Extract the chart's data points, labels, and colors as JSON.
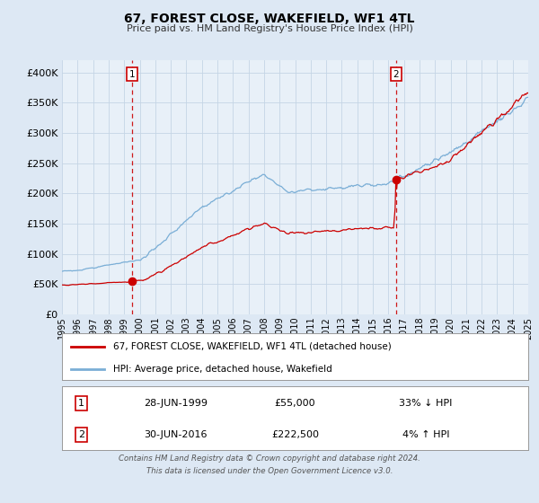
{
  "title": "67, FOREST CLOSE, WAKEFIELD, WF1 4TL",
  "subtitle": "Price paid vs. HM Land Registry's House Price Index (HPI)",
  "bg_color": "#dde8f4",
  "plot_bg_color": "#e8f0f8",
  "grid_color": "#c8d8e8",
  "red_line_color": "#cc0000",
  "blue_line_color": "#7aaed6",
  "marker1_x": 1999.5,
  "marker1_value": 55000,
  "marker2_x": 2016.5,
  "marker2_value": 222500,
  "legend_label_red": "67, FOREST CLOSE, WAKEFIELD, WF1 4TL (detached house)",
  "legend_label_blue": "HPI: Average price, detached house, Wakefield",
  "table_row1": [
    "1",
    "28-JUN-1999",
    "£55,000",
    "33% ↓ HPI"
  ],
  "table_row2": [
    "2",
    "30-JUN-2016",
    "£222,500",
    "4% ↑ HPI"
  ],
  "footer_line1": "Contains HM Land Registry data © Crown copyright and database right 2024.",
  "footer_line2": "This data is licensed under the Open Government Licence v3.0.",
  "ylim": [
    0,
    420000
  ],
  "yticks": [
    0,
    50000,
    100000,
    150000,
    200000,
    250000,
    300000,
    350000,
    400000
  ],
  "xlim": [
    1995,
    2025
  ],
  "xticks": [
    1995,
    1996,
    1997,
    1998,
    1999,
    2000,
    2001,
    2002,
    2003,
    2004,
    2005,
    2006,
    2007,
    2008,
    2009,
    2010,
    2011,
    2012,
    2013,
    2014,
    2015,
    2016,
    2017,
    2018,
    2019,
    2020,
    2021,
    2022,
    2023,
    2024,
    2025
  ]
}
